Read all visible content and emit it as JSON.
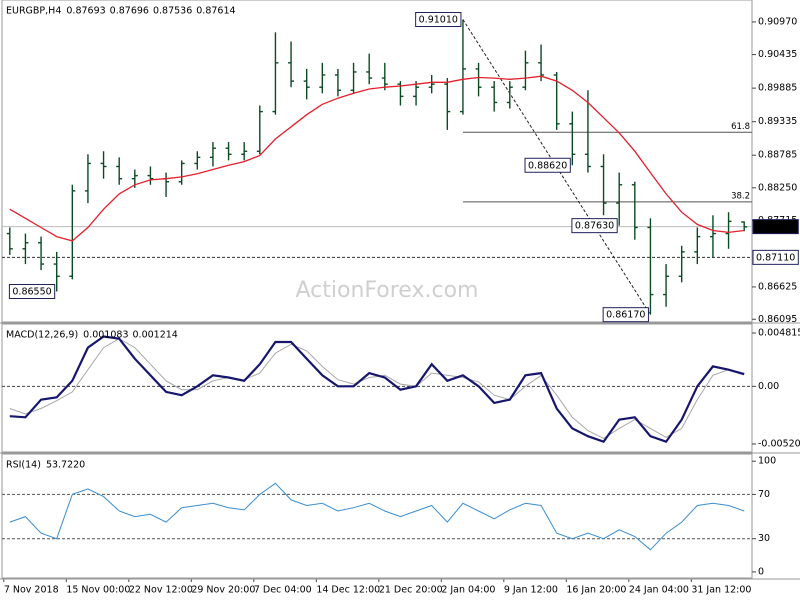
{
  "chart_data": [
    {
      "type": "ohlc",
      "title": "EURGBP,H4",
      "header_values": [
        0.87693,
        0.87696,
        0.87536,
        0.87614
      ],
      "watermark": "ActionForex.com",
      "categories": [
        "7 Nov 2018",
        null,
        null,
        null,
        "15 Nov 00:00",
        null,
        null,
        null,
        "22 Nov 12:00",
        null,
        null,
        null,
        "29 Nov 20:00",
        null,
        null,
        null,
        "7 Dec 04:00",
        null,
        null,
        null,
        "14 Dec 12:00",
        null,
        null,
        null,
        "21 Dec 20:00",
        null,
        null,
        null,
        "2 Jan 04:00",
        null,
        null,
        null,
        "9 Jan 12:00",
        null,
        null,
        null,
        "16 Jan 20:00",
        null,
        null,
        null,
        "24 Jan 04:00",
        null,
        null,
        null,
        "31 Jan 12:00",
        null,
        null,
        null
      ],
      "color": "#0b4a22",
      "ohlc": [
        [
          0.875,
          0.876,
          0.8715,
          0.8725
        ],
        [
          0.8725,
          0.875,
          0.87,
          0.8735
        ],
        [
          0.8735,
          0.8745,
          0.869,
          0.87
        ],
        [
          0.87,
          0.872,
          0.8655,
          0.868
        ],
        [
          0.868,
          0.883,
          0.8675,
          0.882
        ],
        [
          0.882,
          0.888,
          0.88,
          0.8865
        ],
        [
          0.8865,
          0.8885,
          0.884,
          0.886
        ],
        [
          0.886,
          0.8875,
          0.883,
          0.884
        ],
        [
          0.884,
          0.8855,
          0.8825,
          0.8845
        ],
        [
          0.8845,
          0.886,
          0.883,
          0.884
        ],
        [
          0.884,
          0.885,
          0.881,
          0.8835
        ],
        [
          0.8835,
          0.887,
          0.883,
          0.8865
        ],
        [
          0.8865,
          0.8885,
          0.8855,
          0.8875
        ],
        [
          0.8875,
          0.89,
          0.886,
          0.889
        ],
        [
          0.889,
          0.89,
          0.887,
          0.888
        ],
        [
          0.888,
          0.89,
          0.887,
          0.8885
        ],
        [
          0.8885,
          0.896,
          0.888,
          0.895
        ],
        [
          0.895,
          0.908,
          0.8945,
          0.903
        ],
        [
          0.903,
          0.9065,
          0.899,
          0.9
        ],
        [
          0.9,
          0.902,
          0.897,
          0.899
        ],
        [
          0.899,
          0.903,
          0.898,
          0.901
        ],
        [
          0.901,
          0.902,
          0.8975,
          0.8985
        ],
        [
          0.8985,
          0.903,
          0.898,
          0.9015
        ],
        [
          0.9015,
          0.9045,
          0.8995,
          0.9005
        ],
        [
          0.9005,
          0.903,
          0.8985,
          0.8995
        ],
        [
          0.8995,
          0.9,
          0.896,
          0.8975
        ],
        [
          0.8975,
          0.9,
          0.896,
          0.899
        ],
        [
          0.899,
          0.901,
          0.898,
          0.8995
        ],
        [
          0.8995,
          0.9005,
          0.892,
          0.895
        ],
        [
          0.895,
          0.9101,
          0.8945,
          0.902
        ],
        [
          0.902,
          0.903,
          0.8975,
          0.899
        ],
        [
          0.899,
          0.9,
          0.895,
          0.8965
        ],
        [
          0.8965,
          0.9,
          0.8955,
          0.899
        ],
        [
          0.899,
          0.905,
          0.8985,
          0.903
        ],
        [
          0.903,
          0.906,
          0.9,
          0.901
        ],
        [
          0.901,
          0.9015,
          0.892,
          0.893
        ],
        [
          0.893,
          0.895,
          0.8862,
          0.888
        ],
        [
          0.888,
          0.8985,
          0.885,
          0.886
        ],
        [
          0.886,
          0.888,
          0.878,
          0.88
        ],
        [
          0.88,
          0.885,
          0.8763,
          0.883
        ],
        [
          0.883,
          0.8835,
          0.874,
          0.876
        ],
        [
          0.876,
          0.8775,
          0.8617,
          0.865
        ],
        [
          0.865,
          0.87,
          0.863,
          0.868
        ],
        [
          0.868,
          0.873,
          0.867,
          0.872
        ],
        [
          0.872,
          0.876,
          0.87,
          0.8745
        ],
        [
          0.8745,
          0.878,
          0.871,
          0.875
        ],
        [
          0.875,
          0.8785,
          0.8725,
          0.877
        ],
        [
          0.8769,
          0.877,
          0.8754,
          0.8761
        ]
      ],
      "ma": {
        "color": "#e3202c",
        "values": [
          0.879,
          0.8775,
          0.876,
          0.8745,
          0.8738,
          0.876,
          0.879,
          0.8815,
          0.883,
          0.8838,
          0.884,
          0.8843,
          0.8848,
          0.8855,
          0.8862,
          0.8868,
          0.8878,
          0.8905,
          0.8925,
          0.8945,
          0.8962,
          0.8972,
          0.898,
          0.8987,
          0.899,
          0.8992,
          0.8995,
          0.8998,
          0.8998,
          0.9003,
          0.9006,
          0.9005,
          0.9003,
          0.9005,
          0.9008,
          0.9,
          0.8985,
          0.8965,
          0.894,
          0.8915,
          0.8885,
          0.885,
          0.8815,
          0.8785,
          0.8765,
          0.8755,
          0.8752,
          0.8755
        ]
      },
      "ylim": [
        0.8605,
        0.9133
      ],
      "yticks": [
        {
          "value": 0.9097,
          "label": "0.90970"
        },
        {
          "value": 0.90435,
          "label": "0.90435"
        },
        {
          "value": 0.89885,
          "label": "0.89885"
        },
        {
          "value": 0.89335,
          "label": "0.89335"
        },
        {
          "value": 0.88785,
          "label": "0.88785"
        },
        {
          "value": 0.8825,
          "label": "0.88250"
        },
        {
          "value": 0.87715,
          "label": "0.87715"
        },
        {
          "value": 0.86625,
          "label": "0.86625"
        },
        {
          "value": 0.86095,
          "label": "0.86095"
        }
      ],
      "last_price": {
        "value": 0.87614,
        "label": "0.87614"
      },
      "level": {
        "value": 0.8711,
        "label": "0.87110"
      },
      "annotations": [
        {
          "label": "0.91010",
          "value": 0.9101,
          "bar": 29
        },
        {
          "label": "0.88620",
          "value": 0.8862,
          "bar": 36
        },
        {
          "label": "0.87630",
          "value": 0.8763,
          "bar": 39
        },
        {
          "label": "0.86550",
          "value": 0.8655,
          "bar": 3
        },
        {
          "label": "0.86170",
          "value": 0.8617,
          "bar": 41
        }
      ],
      "fibonacci": [
        61.8,
        38.2
      ]
    },
    {
      "type": "macd",
      "title": "MACD(12,26,9)",
      "header_values": [
        0.001083,
        0.001214
      ],
      "series": [
        {
          "color": "#16166e",
          "values": [
            -0.0027,
            -0.0028,
            -0.0012,
            -0.001,
            0.0005,
            0.0035,
            0.0045,
            0.0043,
            0.0025,
            0.001,
            -0.0005,
            -0.0008,
            0,
            0.001,
            0.0008,
            0.0005,
            0.002,
            0.004,
            0.004,
            0.0025,
            0.001,
            0,
            0,
            0.0012,
            0.0008,
            -0.0003,
            0,
            0.002,
            0.0005,
            0.001,
            0,
            -0.0015,
            -0.0012,
            0.001,
            0.0012,
            -0.002,
            -0.0038,
            -0.0045,
            -0.005,
            -0.003,
            -0.0028,
            -0.0045,
            -0.005,
            -0.003,
            0,
            0.0018,
            0.0015,
            0.0011
          ]
        },
        {
          "color": "#a8a8a8",
          "values": [
            -0.002,
            -0.0025,
            -0.002,
            -0.0013,
            -0.0005,
            0.0015,
            0.0035,
            0.0043,
            0.0035,
            0.002,
            0.0005,
            -0.0003,
            -0.0003,
            0.0005,
            0.0008,
            0.0006,
            0.0012,
            0.003,
            0.0038,
            0.0032,
            0.0018,
            0.0006,
            0.0002,
            0.0008,
            0.001,
            0.0002,
            0,
            0.0012,
            0.001,
            0.0008,
            0.0004,
            -0.0008,
            -0.0012,
            0,
            0.001,
            -0.0008,
            -0.0028,
            -0.004,
            -0.0047,
            -0.0038,
            -0.003,
            -0.0038,
            -0.0046,
            -0.0038,
            -0.0012,
            0.001,
            0.0015,
            0.0012
          ]
        }
      ],
      "ylim": [
        -0.00593,
        0.00563
      ],
      "yticks": [
        0.004815,
        {
          "value": 0,
          "label": "0.00"
        },
        -0.005204
      ]
    },
    {
      "type": "rsi",
      "title": "RSI(14)",
      "header_values": [
        {
          "value": 53.722,
          "label": "53.7220"
        }
      ],
      "series": [
        {
          "color": "#3a8ed2",
          "values": [
            45,
            50,
            35,
            30,
            70,
            75,
            68,
            55,
            50,
            52,
            45,
            58,
            60,
            62,
            58,
            56,
            70,
            80,
            65,
            60,
            62,
            55,
            58,
            62,
            55,
            50,
            55,
            60,
            45,
            62,
            55,
            48,
            56,
            62,
            60,
            35,
            30,
            35,
            30,
            38,
            32,
            20,
            35,
            45,
            60,
            62,
            60,
            55
          ]
        }
      ],
      "levels": [
        70,
        30
      ],
      "ylim": [
        -5.5,
        106.5
      ],
      "yticks": [
        100,
        70,
        30,
        0
      ]
    }
  ]
}
